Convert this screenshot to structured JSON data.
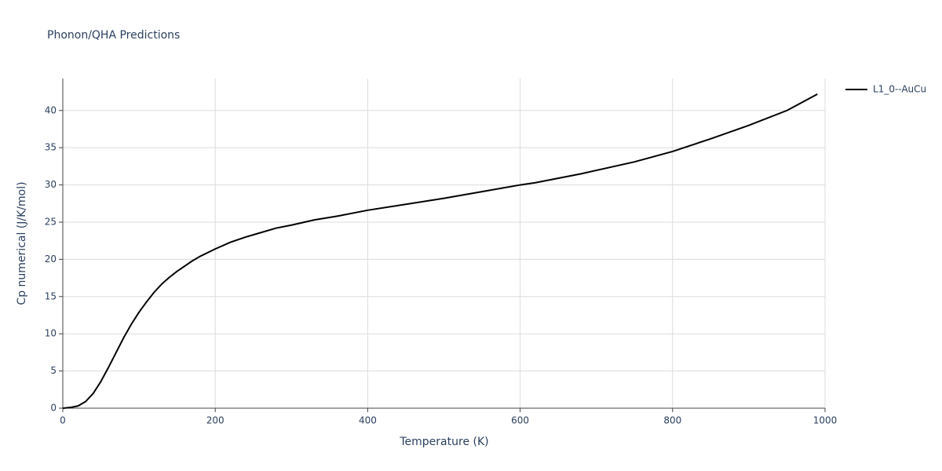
{
  "chart_data": {
    "type": "line",
    "title": "Phonon/QHA Predictions",
    "x_label": "Temperature (K)",
    "y_label": "Cp numerical (J/K/mol)",
    "x": [
      0,
      10,
      20,
      30,
      40,
      50,
      60,
      70,
      80,
      90,
      100,
      110,
      120,
      130,
      140,
      150,
      160,
      170,
      180,
      200,
      220,
      240,
      260,
      280,
      300,
      330,
      360,
      400,
      450,
      500,
      550,
      600,
      620,
      680,
      750,
      800,
      850,
      900,
      950,
      990
    ],
    "series": [
      {
        "name": "L1_0--AuCu",
        "color": "#000000",
        "values": [
          0,
          0.1,
          0.3,
          0.9,
          2.0,
          3.6,
          5.5,
          7.5,
          9.5,
          11.3,
          12.9,
          14.3,
          15.6,
          16.7,
          17.6,
          18.4,
          19.1,
          19.8,
          20.4,
          21.4,
          22.3,
          23.0,
          23.6,
          24.2,
          24.6,
          25.3,
          25.8,
          26.6,
          27.4,
          28.2,
          29.1,
          30.0,
          30.3,
          31.5,
          33.1,
          34.5,
          36.2,
          38.0,
          40.0,
          42.2
        ]
      }
    ],
    "xlim": [
      0,
      1000
    ],
    "xticks": [
      0,
      200,
      400,
      600,
      800,
      1000
    ],
    "ylim": [
      0,
      44.3
    ],
    "yticks": [
      0,
      5,
      10,
      15,
      20,
      25,
      30,
      35,
      40
    ],
    "grid": true,
    "legend": "right"
  }
}
